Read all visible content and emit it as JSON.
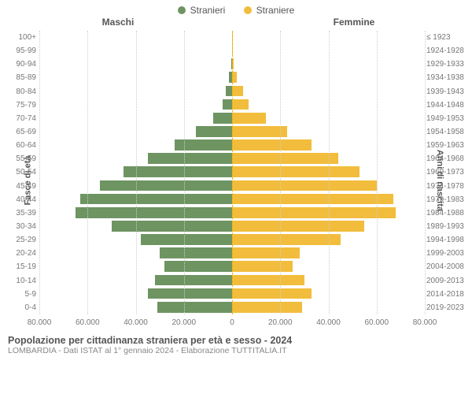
{
  "legend": {
    "male": {
      "label": "Stranieri",
      "color": "#6e9462"
    },
    "female": {
      "label": "Straniere",
      "color": "#f2bd3c"
    }
  },
  "column_headers": {
    "left": "Maschi",
    "right": "Femmine"
  },
  "axis_titles": {
    "left": "Fasce di età",
    "right": "Anni di nascita"
  },
  "chart": {
    "type": "population-pyramid",
    "x_max": 80000,
    "x_ticks": [
      80000,
      60000,
      40000,
      20000,
      0,
      20000,
      40000,
      60000,
      80000
    ],
    "x_tick_labels": [
      "80.000",
      "60.000",
      "40.000",
      "20.000",
      "0",
      "20.000",
      "40.000",
      "60.000",
      "80.000"
    ],
    "bar_color_male": "#6e9462",
    "bar_color_female": "#f2bd3c",
    "grid_color": "#cccccc",
    "background_color": "#ffffff",
    "rows": [
      {
        "age": "100+",
        "birth": "≤ 1923",
        "male": 100,
        "female": 200
      },
      {
        "age": "95-99",
        "birth": "1924-1928",
        "male": 150,
        "female": 300
      },
      {
        "age": "90-94",
        "birth": "1929-1933",
        "male": 250,
        "female": 500
      },
      {
        "age": "85-89",
        "birth": "1934-1938",
        "male": 1200,
        "female": 2000
      },
      {
        "age": "80-84",
        "birth": "1939-1943",
        "male": 2500,
        "female": 4500
      },
      {
        "age": "75-79",
        "birth": "1944-1948",
        "male": 4000,
        "female": 7000
      },
      {
        "age": "70-74",
        "birth": "1949-1953",
        "male": 8000,
        "female": 14000
      },
      {
        "age": "65-69",
        "birth": "1954-1958",
        "male": 15000,
        "female": 23000
      },
      {
        "age": "60-64",
        "birth": "1959-1963",
        "male": 24000,
        "female": 33000
      },
      {
        "age": "55-59",
        "birth": "1964-1968",
        "male": 35000,
        "female": 44000
      },
      {
        "age": "50-54",
        "birth": "1969-1973",
        "male": 45000,
        "female": 53000
      },
      {
        "age": "45-49",
        "birth": "1974-1978",
        "male": 55000,
        "female": 60000
      },
      {
        "age": "40-44",
        "birth": "1979-1983",
        "male": 63000,
        "female": 67000
      },
      {
        "age": "35-39",
        "birth": "1984-1988",
        "male": 65000,
        "female": 68000
      },
      {
        "age": "30-34",
        "birth": "1989-1993",
        "male": 50000,
        "female": 55000
      },
      {
        "age": "25-29",
        "birth": "1994-1998",
        "male": 38000,
        "female": 45000
      },
      {
        "age": "20-24",
        "birth": "1999-2003",
        "male": 30000,
        "female": 28000
      },
      {
        "age": "15-19",
        "birth": "2004-2008",
        "male": 28000,
        "female": 25000
      },
      {
        "age": "10-14",
        "birth": "2009-2013",
        "male": 32000,
        "female": 30000
      },
      {
        "age": "5-9",
        "birth": "2014-2018",
        "male": 35000,
        "female": 33000
      },
      {
        "age": "0-4",
        "birth": "2019-2023",
        "male": 31000,
        "female": 29000
      }
    ]
  },
  "footer": {
    "title": "Popolazione per cittadinanza straniera per età e sesso - 2024",
    "subtitle": "LOMBARDIA - Dati ISTAT al 1° gennaio 2024 - Elaborazione TUTTITALIA.IT"
  },
  "text_color": "#555555",
  "tick_color": "#777777"
}
